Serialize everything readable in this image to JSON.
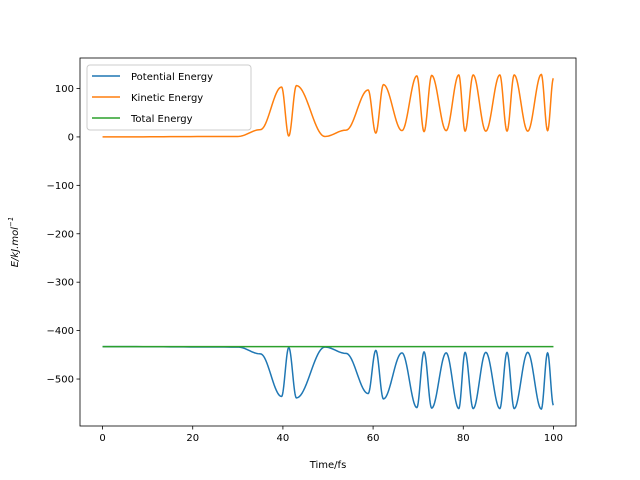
{
  "chart_data": {
    "type": "line",
    "title": "",
    "xlabel": "Time/fs",
    "ylabel": "E/kJ.mol",
    "ylabel_superscript": "−1",
    "xlim": [
      -5,
      105
    ],
    "ylim": [
      -597,
      163
    ],
    "xticks": [
      0,
      20,
      40,
      60,
      80,
      100
    ],
    "yticks": [
      100,
      0,
      -100,
      -200,
      -300,
      -400,
      -500
    ],
    "xtick_labels": [
      "0",
      "20",
      "40",
      "60",
      "80",
      "100"
    ],
    "ytick_labels": [
      "100",
      "0",
      "−100",
      "−200",
      "−300",
      "−400",
      "−500"
    ],
    "legend_position": "upper-left",
    "series": [
      {
        "name": "Potential Energy",
        "color": "#1f77b4",
        "points": [
          [
            0,
            -433
          ],
          [
            30,
            -434
          ],
          [
            35,
            -448
          ],
          [
            39.7,
            -536
          ],
          [
            41.3,
            -435
          ],
          [
            43,
            -539
          ],
          [
            49.3,
            -434
          ],
          [
            54,
            -447
          ],
          [
            58.9,
            -530
          ],
          [
            60.6,
            -441
          ],
          [
            62.3,
            -541
          ],
          [
            66.4,
            -446
          ],
          [
            69.7,
            -559
          ],
          [
            71.3,
            -444
          ],
          [
            73,
            -560
          ],
          [
            76.2,
            -446
          ],
          [
            79,
            -561
          ],
          [
            80.4,
            -445
          ],
          [
            82.2,
            -561
          ],
          [
            85,
            -445
          ],
          [
            88.1,
            -561
          ],
          [
            89.7,
            -445
          ],
          [
            91.3,
            -561
          ],
          [
            94.3,
            -445
          ],
          [
            97.3,
            -562
          ],
          [
            98.7,
            -446
          ],
          [
            100,
            -554
          ]
        ]
      },
      {
        "name": "Kinetic Energy",
        "color": "#ff7f0e",
        "points": [
          [
            0,
            0
          ],
          [
            30,
            1
          ],
          [
            35,
            15
          ],
          [
            39.7,
            103
          ],
          [
            41.3,
            2
          ],
          [
            43,
            106
          ],
          [
            49.3,
            1
          ],
          [
            54,
            14
          ],
          [
            58.9,
            97
          ],
          [
            60.6,
            8
          ],
          [
            62.3,
            108
          ],
          [
            66.4,
            13
          ],
          [
            69.7,
            126
          ],
          [
            71.3,
            11
          ],
          [
            73,
            127
          ],
          [
            76.2,
            13
          ],
          [
            79,
            128
          ],
          [
            80.4,
            12
          ],
          [
            82.2,
            128
          ],
          [
            85,
            12
          ],
          [
            88.1,
            128
          ],
          [
            89.7,
            12
          ],
          [
            91.3,
            128
          ],
          [
            94.3,
            12
          ],
          [
            97.3,
            129
          ],
          [
            98.7,
            13
          ],
          [
            100,
            121
          ]
        ]
      },
      {
        "name": "Total Energy",
        "color": "#2ca02c",
        "points": [
          [
            0,
            -433
          ],
          [
            100,
            -433
          ]
        ]
      }
    ]
  }
}
